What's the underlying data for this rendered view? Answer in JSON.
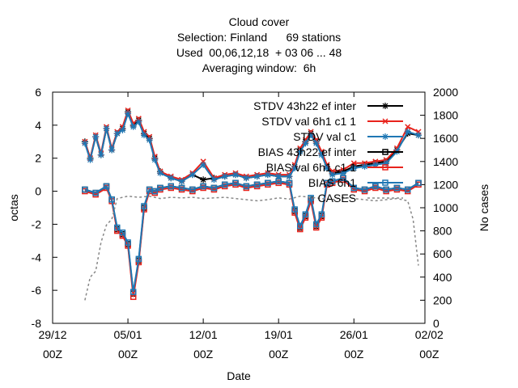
{
  "chart_data": {
    "type": "line",
    "title": [
      "Cloud cover",
      "Selection: Finland      69 stations",
      "Used  00,06,12,18  + 03 06 ... 48",
      "Averaging window:  6h"
    ],
    "xlabel": "Date",
    "ylabel": "octas",
    "y2label": "No cases",
    "xlim": [
      0,
      34.6
    ],
    "ylim": [
      -8,
      6
    ],
    "y2lim": [
      0,
      2000
    ],
    "x_ticks": [
      {
        "at": 0,
        "label": [
          "29/12",
          "00Z"
        ]
      },
      {
        "at": 7,
        "label": [
          "05/01",
          "00Z"
        ]
      },
      {
        "at": 14,
        "label": [
          "12/01",
          "00Z"
        ]
      },
      {
        "at": 21,
        "label": [
          "19/01",
          "00Z"
        ]
      },
      {
        "at": 28,
        "label": [
          "26/01",
          "00Z"
        ]
      },
      {
        "at": 35,
        "label": [
          "02/02",
          "00Z"
        ]
      }
    ],
    "y_ticks": [
      -8,
      -6,
      -4,
      -2,
      0,
      2,
      4,
      6
    ],
    "y2_ticks": [
      0,
      200,
      400,
      600,
      800,
      1000,
      1200,
      1400,
      1600,
      1800,
      2000
    ],
    "grid": false,
    "legend_position": "top-right",
    "series": [
      {
        "name": "STDV 43h22_ref_winter",
        "legend": "STDV 43h22 ef inter",
        "color": "#000000",
        "marker": "star",
        "axis": "y",
        "x": [
          3,
          3.5,
          4,
          4.5,
          5,
          5.5,
          6,
          6.5,
          7,
          7.5,
          8,
          8.5,
          9,
          9.5,
          10,
          11,
          12,
          13,
          14,
          15,
          16,
          17,
          18,
          19,
          20,
          21,
          22,
          22.5,
          23,
          23.5,
          24,
          24.5,
          25,
          25.5,
          26,
          27,
          28,
          29,
          30,
          31,
          32,
          33,
          34
        ],
        "y": [
          3.0,
          2.0,
          3.3,
          2.2,
          3.8,
          2.5,
          3.5,
          3.8,
          4.8,
          4.0,
          4.3,
          3.5,
          3.2,
          2.0,
          1.2,
          0.8,
          0.6,
          1.0,
          0.7,
          0.8,
          0.9,
          1.0,
          0.8,
          0.9,
          1.0,
          0.9,
          0.9,
          1.5,
          2.5,
          3.0,
          3.5,
          3.0,
          2.3,
          1.5,
          1.1,
          1.2,
          1.5,
          1.6,
          1.7,
          1.8,
          2.5,
          3.5,
          3.4
        ]
      },
      {
        "name": "STDV val_46h1_rc1_v1",
        "legend": "STDV val 6h1 c1 1",
        "color": "#e8231c",
        "marker": "x",
        "axis": "y",
        "x": [
          3,
          3.5,
          4,
          4.5,
          5,
          5.5,
          6,
          6.5,
          7,
          7.5,
          8,
          8.5,
          9,
          9.5,
          10,
          11,
          12,
          13,
          14,
          15,
          16,
          17,
          18,
          19,
          20,
          21,
          22,
          22.5,
          23,
          23.5,
          24,
          24.5,
          25,
          25.5,
          26,
          27,
          28,
          29,
          30,
          31,
          32,
          33,
          34
        ],
        "y": [
          3.0,
          2.0,
          3.4,
          2.3,
          3.9,
          2.6,
          3.6,
          3.9,
          4.9,
          4.1,
          4.4,
          3.6,
          3.3,
          2.1,
          1.2,
          0.9,
          0.7,
          1.1,
          1.8,
          0.8,
          1.0,
          1.1,
          0.9,
          1.0,
          1.1,
          1.0,
          1.0,
          1.6,
          2.6,
          3.1,
          3.6,
          3.1,
          2.4,
          1.6,
          1.2,
          1.3,
          1.7,
          1.7,
          1.8,
          1.9,
          2.6,
          3.9,
          3.6
        ]
      },
      {
        "name": "STDV val_46h1_rc1_v1 (2)",
        "legend": "STDV val c1",
        "color": "#1f77b4",
        "marker": "star",
        "axis": "y",
        "x": [
          3,
          3.5,
          4,
          4.5,
          5,
          5.5,
          6,
          6.5,
          7,
          7.5,
          8,
          8.5,
          9,
          9.5,
          10,
          11,
          12,
          13,
          14,
          15,
          16,
          17,
          18,
          19,
          20,
          21,
          22,
          22.5,
          23,
          23.5,
          24,
          24.5,
          25,
          25.5,
          26,
          27,
          28,
          29,
          30,
          31,
          32,
          33,
          34
        ],
        "y": [
          2.9,
          1.9,
          3.3,
          2.2,
          3.8,
          2.5,
          3.5,
          3.7,
          4.7,
          3.9,
          4.2,
          3.4,
          3.1,
          1.9,
          1.1,
          0.8,
          0.6,
          1.0,
          1.6,
          0.7,
          0.9,
          1.0,
          0.8,
          0.9,
          1.0,
          0.9,
          0.9,
          1.4,
          2.4,
          2.9,
          3.4,
          2.9,
          2.2,
          1.4,
          1.0,
          1.1,
          1.4,
          1.5,
          1.6,
          1.7,
          2.4,
          3.6,
          3.4
        ]
      },
      {
        "name": "BIAS 43h22_ref_winter",
        "legend": "BIAS 43h22 ef inter",
        "color": "#000000",
        "marker": "square",
        "axis": "y",
        "x": [
          3,
          4,
          5,
          5.5,
          6,
          6.5,
          7,
          7.5,
          8,
          8.5,
          9,
          9.5,
          10,
          11,
          12,
          13,
          14,
          15,
          16,
          17,
          18,
          19,
          20,
          21,
          22,
          22.5,
          23,
          23.5,
          24,
          24.5,
          25,
          25.5,
          26,
          27,
          28,
          29,
          30,
          31,
          32,
          33,
          34
        ],
        "y": [
          0.1,
          -0.1,
          0.3,
          -0.5,
          -2.3,
          -2.6,
          -3.2,
          -6.2,
          -4.2,
          -1.0,
          0.1,
          0.0,
          0.2,
          0.3,
          0.2,
          0.1,
          0.3,
          0.2,
          0.4,
          0.5,
          0.3,
          0.4,
          0.5,
          0.6,
          0.5,
          -1.2,
          -2.2,
          -1.5,
          -0.5,
          -2.1,
          -1.5,
          0.5,
          0.6,
          0.8,
          0.2,
          0.1,
          0.3,
          0.1,
          0.2,
          0.1,
          0.5
        ]
      },
      {
        "name": "BIAS val_46h1_rc1_v1",
        "legend": "BIAS val 6h1 c1 1",
        "color": "#e8231c",
        "marker": "square",
        "axis": "y",
        "x": [
          3,
          4,
          5,
          5.5,
          6,
          6.5,
          7,
          7.5,
          8,
          8.5,
          9,
          9.5,
          10,
          11,
          12,
          13,
          14,
          15,
          16,
          17,
          18,
          19,
          20,
          21,
          22,
          22.5,
          23,
          23.5,
          24,
          24.5,
          25,
          25.5,
          26,
          27,
          28,
          29,
          30,
          31,
          32,
          33,
          34
        ],
        "y": [
          0.0,
          -0.2,
          0.2,
          -0.6,
          -2.4,
          -2.7,
          -3.3,
          -6.4,
          -4.3,
          -1.1,
          0.0,
          -0.1,
          0.1,
          0.2,
          0.1,
          0.0,
          0.2,
          0.1,
          0.3,
          0.4,
          0.2,
          0.3,
          0.4,
          0.5,
          0.4,
          -1.3,
          -2.3,
          -1.6,
          -0.6,
          -2.2,
          -1.6,
          0.4,
          0.5,
          0.7,
          0.1,
          0.0,
          0.2,
          0.0,
          0.1,
          0.0,
          0.4
        ]
      },
      {
        "name": "BIAS val_46h1_rc1_v1 (2)",
        "legend": "BIAS 6h1",
        "color": "#1f77b4",
        "marker": "square",
        "axis": "y",
        "x": [
          3,
          4,
          5,
          5.5,
          6,
          6.5,
          7,
          7.5,
          8,
          8.5,
          9,
          9.5,
          10,
          11,
          12,
          13,
          14,
          15,
          16,
          17,
          18,
          19,
          20,
          21,
          22,
          22.5,
          23,
          23.5,
          24,
          24.5,
          25,
          25.5,
          26,
          27,
          28,
          29,
          30,
          31,
          32,
          33,
          34
        ],
        "y": [
          0.1,
          -0.1,
          0.3,
          -0.5,
          -2.2,
          -2.5,
          -3.1,
          -6.1,
          -4.1,
          -0.9,
          0.1,
          0.0,
          0.2,
          0.3,
          0.2,
          0.1,
          0.3,
          0.2,
          0.4,
          0.5,
          0.3,
          0.4,
          0.5,
          0.6,
          0.5,
          -1.1,
          -2.1,
          -1.4,
          -0.4,
          -2.0,
          -1.4,
          0.5,
          0.6,
          0.8,
          0.2,
          0.1,
          0.3,
          0.1,
          0.2,
          0.1,
          0.5
        ]
      },
      {
        "name": "CASES",
        "legend": "CASES",
        "color": "#888888",
        "marker": "none",
        "dashed": true,
        "axis": "y2",
        "x": [
          3,
          3.5,
          4,
          4.5,
          5,
          5.5,
          6,
          7,
          8,
          9,
          10,
          11,
          12,
          13,
          14,
          15,
          16,
          17,
          18,
          19,
          20,
          21,
          22,
          23,
          24,
          25,
          26,
          27,
          28,
          29,
          30,
          31,
          32,
          33,
          33.5,
          34
        ],
        "y": [
          200,
          400,
          450,
          700,
          850,
          900,
          1080,
          1100,
          1090,
          1100,
          1080,
          1090,
          1085,
          1090,
          1080,
          1085,
          1090,
          1080,
          1070,
          1060,
          1070,
          1085,
          1075,
          1100,
          1090,
          1080,
          1070,
          1090,
          1080,
          1070,
          1060,
          1070,
          1080,
          1060,
          900,
          500
        ]
      }
    ]
  }
}
